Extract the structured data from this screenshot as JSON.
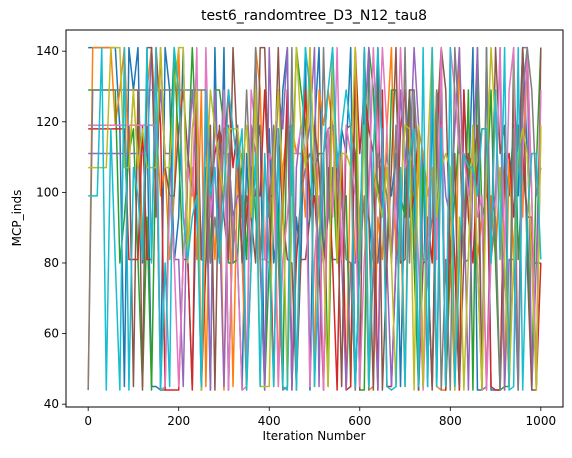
{
  "chart_data": {
    "type": "line",
    "title": "test6_randomtree_D3_N12_tau8",
    "xlabel": "Iteration Number",
    "ylabel": "MCP_inds",
    "xlim": [
      -49,
      1049
    ],
    "ylim": [
      39.2,
      146.0
    ],
    "x_ticks": [
      0,
      200,
      400,
      600,
      800,
      1000
    ],
    "y_ticks": [
      40,
      60,
      80,
      100,
      120,
      140
    ],
    "grid": false,
    "legend": "none",
    "x_step": 10,
    "levels": [
      44,
      45,
      80,
      81,
      93,
      99,
      107,
      111,
      118,
      119,
      129,
      141
    ],
    "series": [
      {
        "color": "#1f77b4",
        "values": [
          141,
          141,
          141,
          141,
          141,
          141,
          141,
          118,
          45,
          141,
          129,
          141,
          80,
          119,
          45,
          45,
          44,
          141,
          129,
          80,
          93,
          141,
          81,
          45,
          107,
          44,
          107,
          44,
          141,
          81,
          141,
          44,
          93,
          81,
          44,
          111,
          81,
          111,
          119,
          44,
          118,
          80,
          93,
          129,
          141,
          44,
          93,
          80,
          141,
          44,
          118,
          141,
          81,
          99,
          81,
          81,
          118,
          111,
          141,
          44,
          80,
          141,
          93,
          80,
          80,
          99,
          111,
          99,
          111,
          45,
          107,
          129,
          99,
          44,
          111,
          45,
          129,
          45,
          129,
          45,
          107,
          81,
          44,
          129,
          99,
          141,
          44,
          44,
          141,
          44,
          44,
          44,
          111,
          99,
          119,
          99,
          141,
          111,
          80,
          80,
          80
        ]
      },
      {
        "color": "#ff7f0e",
        "values": [
          44,
          141,
          141,
          141,
          141,
          141,
          119,
          129,
          141,
          107,
          129,
          129,
          81,
          129,
          141,
          119,
          99,
          107,
          81,
          99,
          141,
          93,
          81,
          107,
          81,
          129,
          45,
          107,
          81,
          111,
          44,
          111,
          45,
          107,
          81,
          44,
          80,
          141,
          129,
          81,
          80,
          119,
          45,
          107,
          118,
          119,
          111,
          111,
          93,
          141,
          45,
          129,
          119,
          129,
          119,
          93,
          111,
          44,
          111,
          81,
          80,
          129,
          44,
          45,
          93,
          81,
          118,
          141,
          81,
          93,
          45,
          129,
          81,
          118,
          111,
          99,
          107,
          45,
          44,
          44,
          80,
          44,
          141,
          93,
          107,
          111,
          81,
          93,
          44,
          99,
          81,
          107,
          44,
          111,
          81,
          119,
          93,
          141,
          99,
          45,
          118
        ]
      },
      {
        "color": "#2ca02c",
        "values": [
          129,
          129,
          129,
          129,
          129,
          129,
          129,
          80,
          93,
          111,
          118,
          81,
          45,
          93,
          44,
          118,
          44,
          44,
          111,
          141,
          111,
          80,
          107,
          141,
          111,
          81,
          99,
          80,
          129,
          129,
          119,
          80,
          80,
          81,
          111,
          81,
          119,
          93,
          81,
          45,
          80,
          107,
          93,
          45,
          129,
          99,
          141,
          129,
          119,
          99,
          107,
          111,
          111,
          45,
          107,
          80,
          99,
          99,
          45,
          141,
          44,
          44,
          141,
          129,
          99,
          111,
          80,
          129,
          129,
          99,
          93,
          129,
          80,
          44,
          107,
          80,
          45,
          111,
          141,
          44,
          81,
          99,
          118,
          80,
          129,
          44,
          141,
          93,
          99,
          129,
          80,
          44,
          45,
          45,
          141,
          81,
          107,
          93,
          45,
          107,
          141
        ]
      },
      {
        "color": "#d62728",
        "values": [
          118,
          118,
          118,
          118,
          118,
          118,
          118,
          118,
          118,
          81,
          81,
          81,
          119,
          81,
          81,
          141,
          119,
          44,
          44,
          44,
          44,
          81,
          81,
          44,
          129,
          44,
          80,
          99,
          111,
          118,
          111,
          129,
          107,
          119,
          81,
          93,
          107,
          99,
          99,
          129,
          99,
          45,
          118,
          93,
          129,
          45,
          81,
          99,
          129,
          93,
          99,
          80,
          44,
          107,
          80,
          44,
          111,
          44,
          45,
          141,
          111,
          129,
          118,
          111,
          44,
          129,
          45,
          45,
          80,
          118,
          129,
          93,
          99,
          119,
          45,
          93,
          80,
          129,
          118,
          44,
          99,
          80,
          44,
          129,
          93,
          80,
          107,
          118,
          118,
          45,
          44,
          44,
          107,
          111,
          93,
          119,
          111,
          93,
          93,
          45,
          80
        ]
      },
      {
        "color": "#9467bd",
        "values": [
          111,
          111,
          111,
          111,
          111,
          111,
          111,
          111,
          111,
          111,
          111,
          111,
          111,
          111,
          141,
          111,
          129,
          111,
          111,
          81,
          81,
          45,
          107,
          129,
          107,
          81,
          119,
          44,
          129,
          93,
          45,
          111,
          93,
          99,
          99,
          45,
          119,
          111,
          80,
          44,
          141,
          99,
          129,
          118,
          141,
          44,
          107,
          119,
          111,
          119,
          141,
          45,
          111,
          118,
          119,
          111,
          81,
          44,
          80,
          80,
          93,
          118,
          141,
          81,
          44,
          118,
          80,
          45,
          81,
          129,
          107,
          107,
          141,
          119,
          80,
          81,
          45,
          93,
          119,
          99,
          93,
          118,
          141,
          99,
          44,
          107,
          141,
          44,
          45,
          93,
          99,
          141,
          44,
          81,
          81,
          44,
          141,
          141,
          44,
          80,
          129
        ]
      },
      {
        "color": "#8c564b",
        "values": [
          119,
          119,
          119,
          119,
          119,
          119,
          119,
          119,
          119,
          119,
          45,
          129,
          44,
          141,
          141,
          93,
          141,
          107,
          99,
          99,
          118,
          129,
          111,
          99,
          129,
          81,
          80,
          119,
          44,
          119,
          93,
          81,
          141,
          111,
          80,
          99,
          93,
          80,
          141,
          141,
          99,
          99,
          141,
          93,
          81,
          80,
          45,
          81,
          81,
          93,
          119,
          107,
          80,
          93,
          141,
          99,
          45,
          118,
          119,
          111,
          44,
          141,
          93,
          44,
          141,
          44,
          80,
          107,
          141,
          80,
          81,
          129,
          129,
          44,
          80,
          81,
          44,
          118,
          141,
          129,
          80,
          111,
          45,
          81,
          111,
          107,
          119,
          45,
          118,
          80,
          141,
          111,
          119,
          45,
          129,
          107,
          141,
          80,
          44,
          44,
          141
        ]
      },
      {
        "color": "#e377c2",
        "values": [
          119,
          119,
          119,
          119,
          119,
          119,
          119,
          119,
          119,
          119,
          119,
          119,
          119,
          119,
          119,
          119,
          44,
          45,
          99,
          81,
          45,
          81,
          107,
          99,
          141,
          45,
          141,
          93,
          107,
          80,
          129,
          44,
          93,
          80,
          44,
          45,
          129,
          118,
          81,
          81,
          111,
          107,
          45,
          81,
          93,
          111,
          111,
          118,
          111,
          45,
          81,
          99,
          44,
          118,
          93,
          141,
          81,
          119,
          111,
          99,
          45,
          81,
          99,
          141,
          107,
          141,
          118,
          81,
          99,
          141,
          107,
          111,
          107,
          80,
          44,
          81,
          141,
          81,
          141,
          45,
          141,
          129,
          111,
          111,
          99,
          111,
          93,
          99,
          44,
          81,
          93,
          141,
          81,
          129,
          141,
          44,
          111,
          141,
          99,
          45,
          129
        ]
      },
      {
        "color": "#7f7f7f",
        "values": [
          44,
          129,
          129,
          129,
          129,
          129,
          129,
          129,
          129,
          129,
          129,
          129,
          129,
          129,
          129,
          129,
          129,
          129,
          129,
          129,
          129,
          129,
          129,
          129,
          129,
          129,
          129,
          80,
          93,
          80,
          118,
          119,
          80,
          119,
          93,
          129,
          99,
          141,
          81,
          107,
          93,
          119,
          81,
          44,
          45,
          141,
          44,
          99,
          107,
          111,
          107,
          81,
          141,
          93,
          129,
          111,
          99,
          81,
          80,
          44,
          81,
          99,
          44,
          80,
          111,
          107,
          99,
          80,
          119,
          81,
          141,
          80,
          129,
          107,
          81,
          81,
          93,
          129,
          44,
          81,
          44,
          141,
          118,
          80,
          81,
          119,
          80,
          44,
          141,
          81,
          93,
          44,
          80,
          45,
          118,
          44,
          129,
          141,
          129,
          99,
          107
        ]
      },
      {
        "color": "#bcbd22",
        "values": [
          107,
          107,
          107,
          107,
          107,
          141,
          141,
          141,
          107,
          107,
          129,
          107,
          118,
          107,
          107,
          107,
          141,
          107,
          107,
          129,
          141,
          141,
          80,
          118,
          129,
          44,
          99,
          129,
          118,
          107,
          99,
          118,
          118,
          118,
          107,
          119,
          93,
          129,
          45,
          45,
          45,
          111,
          129,
          99,
          45,
          93,
          141,
          119,
          107,
          141,
          107,
          93,
          81,
          45,
          141,
          80,
          111,
          111,
          107,
          141,
          81,
          119,
          45,
          107,
          99,
          93,
          107,
          80,
          45,
          99,
          119,
          118,
          44,
          119,
          45,
          111,
          141,
          93,
          107,
          111,
          107,
          44,
          93,
          44,
          81,
          119,
          80,
          44,
          107,
          141,
          118,
          99,
          81,
          45,
          81,
          111,
          118,
          111,
          80,
          44,
          119
        ]
      },
      {
        "color": "#17becf",
        "values": [
          99,
          99,
          99,
          141,
          44,
          118,
          80,
          44,
          141,
          44,
          107,
          99,
          81,
          141,
          80,
          141,
          44,
          80,
          45,
          141,
          129,
          93,
          81,
          93,
          99,
          45,
          129,
          99,
          107,
          80,
          99,
          129,
          118,
          107,
          118,
          44,
          80,
          111,
          45,
          111,
          81,
          45,
          118,
          45,
          44,
          119,
          44,
          107,
          141,
          129,
          45,
          80,
          111,
          129,
          141,
          107,
          118,
          129,
          118,
          45,
          81,
          141,
          45,
          111,
          141,
          111,
          45,
          44,
          45,
          107,
          45,
          111,
          118,
          45,
          141,
          45,
          141,
          45,
          118,
          45,
          141,
          45,
          80,
          111,
          107,
          107,
          99,
          118,
          118,
          80,
          129,
          81,
          141,
          44,
          45,
          141,
          44,
          93,
          111,
          111,
          81
        ]
      }
    ]
  }
}
